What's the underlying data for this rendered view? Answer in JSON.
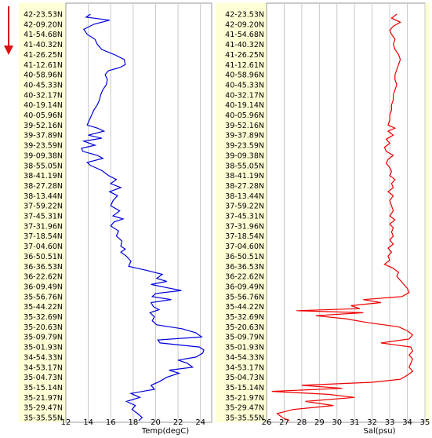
{
  "chart_data": [
    {
      "type": "line",
      "xlabel": "Temp(degC)",
      "xlim": [
        12,
        25
      ],
      "xticks": [
        12,
        14,
        16,
        18,
        20,
        22,
        24
      ],
      "ylabels": [
        "42-23.53N",
        "42-09.20N",
        "41-54.68N",
        "41-40.32N",
        "41-26.25N",
        "41-12.61N",
        "40-58.96N",
        "40-45.33N",
        "40-32.17N",
        "40-19.14N",
        "40-05.96N",
        "39-52.16N",
        "39-37.89N",
        "39-23.59N",
        "39-09.38N",
        "38-55.05N",
        "38-41.19N",
        "38-27.28N",
        "38-13.44N",
        "37-59.22N",
        "37-45.31N",
        "37-31.96N",
        "37-18.54N",
        "37-04.60N",
        "36-50.51N",
        "36-36.53N",
        "36-22.62N",
        "36-09.49N",
        "35-56.76N",
        "35-44.22N",
        "35-32.69N",
        "35-20.63N",
        "35-09.79N",
        "35-01.93N",
        "34-54.33N",
        "34-53.17N",
        "35-04.73N",
        "35-15.14N",
        "35-21.97N",
        "35-29.47N",
        "35-35.55N"
      ],
      "color": "#0000dd",
      "series": [
        {
          "y": 0.0,
          "x": 14.2
        },
        {
          "y": 0.3,
          "x": 13.8
        },
        {
          "y": 0.6,
          "x": 15.9
        },
        {
          "y": 1.0,
          "x": 14.5
        },
        {
          "y": 1.5,
          "x": 13.6
        },
        {
          "y": 2.0,
          "x": 13.9
        },
        {
          "y": 2.5,
          "x": 14.6
        },
        {
          "y": 3.0,
          "x": 14.8
        },
        {
          "y": 3.5,
          "x": 15.2
        },
        {
          "y": 4.0,
          "x": 16.3
        },
        {
          "y": 4.5,
          "x": 17.2
        },
        {
          "y": 5.0,
          "x": 17.3
        },
        {
          "y": 5.3,
          "x": 16.8
        },
        {
          "y": 5.6,
          "x": 15.8
        },
        {
          "y": 6.0,
          "x": 15.5
        },
        {
          "y": 6.5,
          "x": 15.7
        },
        {
          "y": 7.0,
          "x": 15.6
        },
        {
          "y": 7.5,
          "x": 15.3
        },
        {
          "y": 8.0,
          "x": 15.1
        },
        {
          "y": 8.5,
          "x": 15.0
        },
        {
          "y": 9.0,
          "x": 14.8
        },
        {
          "y": 9.5,
          "x": 14.5
        },
        {
          "y": 10.0,
          "x": 14.3
        },
        {
          "y": 10.5,
          "x": 14.1
        },
        {
          "y": 11.0,
          "x": 13.9
        },
        {
          "y": 11.3,
          "x": 14.8
        },
        {
          "y": 11.6,
          "x": 15.4
        },
        {
          "y": 12.0,
          "x": 14.0
        },
        {
          "y": 12.3,
          "x": 15.2
        },
        {
          "y": 12.6,
          "x": 13.6
        },
        {
          "y": 13.0,
          "x": 14.6
        },
        {
          "y": 13.3,
          "x": 13.4
        },
        {
          "y": 13.6,
          "x": 13.5
        },
        {
          "y": 14.0,
          "x": 14.8
        },
        {
          "y": 14.3,
          "x": 15.3
        },
        {
          "y": 14.7,
          "x": 13.9
        },
        {
          "y": 15.0,
          "x": 14.2
        },
        {
          "y": 15.5,
          "x": 15.2
        },
        {
          "y": 16.0,
          "x": 15.8
        },
        {
          "y": 16.4,
          "x": 16.5
        },
        {
          "y": 16.8,
          "x": 16.0
        },
        {
          "y": 17.2,
          "x": 16.9
        },
        {
          "y": 17.6,
          "x": 15.9
        },
        {
          "y": 18.0,
          "x": 16.6
        },
        {
          "y": 18.5,
          "x": 16.2
        },
        {
          "y": 19.0,
          "x": 16.0
        },
        {
          "y": 19.5,
          "x": 16.8
        },
        {
          "y": 20.0,
          "x": 16.2
        },
        {
          "y": 20.3,
          "x": 17.1
        },
        {
          "y": 20.6,
          "x": 16.3
        },
        {
          "y": 21.0,
          "x": 16.0
        },
        {
          "y": 21.5,
          "x": 16.7
        },
        {
          "y": 22.0,
          "x": 16.5
        },
        {
          "y": 22.5,
          "x": 17.0
        },
        {
          "y": 23.0,
          "x": 16.9
        },
        {
          "y": 23.3,
          "x": 17.3
        },
        {
          "y": 23.6,
          "x": 16.9
        },
        {
          "y": 24.0,
          "x": 17.4
        },
        {
          "y": 24.5,
          "x": 17.8
        },
        {
          "y": 25.0,
          "x": 17.6
        },
        {
          "y": 25.4,
          "x": 19.2
        },
        {
          "y": 25.8,
          "x": 20.6
        },
        {
          "y": 26.2,
          "x": 20.1
        },
        {
          "y": 26.5,
          "x": 21.0
        },
        {
          "y": 26.8,
          "x": 19.6
        },
        {
          "y": 27.1,
          "x": 20.9
        },
        {
          "y": 27.4,
          "x": 22.3
        },
        {
          "y": 27.7,
          "x": 20.0
        },
        {
          "y": 28.0,
          "x": 19.7
        },
        {
          "y": 28.3,
          "x": 21.4
        },
        {
          "y": 28.6,
          "x": 19.6
        },
        {
          "y": 29.0,
          "x": 19.8
        },
        {
          "y": 29.3,
          "x": 20.3
        },
        {
          "y": 29.6,
          "x": 19.5
        },
        {
          "y": 30.0,
          "x": 19.9
        },
        {
          "y": 30.4,
          "x": 19.7
        },
        {
          "y": 30.8,
          "x": 20.1
        },
        {
          "y": 31.2,
          "x": 22.4
        },
        {
          "y": 31.6,
          "x": 23.6
        },
        {
          "y": 32.0,
          "x": 24.1
        },
        {
          "y": 32.3,
          "x": 20.2
        },
        {
          "y": 32.6,
          "x": 20.4
        },
        {
          "y": 33.0,
          "x": 23.9
        },
        {
          "y": 33.3,
          "x": 24.3
        },
        {
          "y": 33.6,
          "x": 24.2
        },
        {
          "y": 34.0,
          "x": 23.6
        },
        {
          "y": 34.3,
          "x": 22.0
        },
        {
          "y": 34.6,
          "x": 22.8
        },
        {
          "y": 35.0,
          "x": 23.3
        },
        {
          "y": 35.3,
          "x": 21.2
        },
        {
          "y": 35.6,
          "x": 22.1
        },
        {
          "y": 36.0,
          "x": 21.0
        },
        {
          "y": 36.4,
          "x": 20.4
        },
        {
          "y": 36.8,
          "x": 19.6
        },
        {
          "y": 37.2,
          "x": 19.9
        },
        {
          "y": 37.6,
          "x": 17.8
        },
        {
          "y": 38.0,
          "x": 18.6
        },
        {
          "y": 38.4,
          "x": 17.4
        },
        {
          "y": 38.8,
          "x": 18.2
        },
        {
          "y": 39.2,
          "x": 17.9
        },
        {
          "y": 39.6,
          "x": 18.4
        },
        {
          "y": 40.0,
          "x": 18.8
        },
        {
          "y": 40.3,
          "x": 18.5
        }
      ]
    },
    {
      "type": "line",
      "xlabel": "Sal(psu)",
      "xlim": [
        26,
        35
      ],
      "xticks": [
        26,
        27,
        28,
        29,
        30,
        31,
        32,
        33,
        34,
        35
      ],
      "ylabels": [
        "42-23.53N",
        "42-09.20N",
        "41-54.68N",
        "41-40.32N",
        "41-26.25N",
        "41-12.61N",
        "40-58.96N",
        "40-45.33N",
        "40-32.17N",
        "40-19.14N",
        "40-05.96N",
        "39-52.16N",
        "39-37.89N",
        "39-23.59N",
        "39-09.38N",
        "38-55.05N",
        "38-41.19N",
        "38-27.28N",
        "38-13.44N",
        "37-59.22N",
        "37-45.31N",
        "37-31.96N",
        "37-18.54N",
        "37-04.60N",
        "36-50.51N",
        "36-36.53N",
        "36-22.62N",
        "36-09.49N",
        "35-56.76N",
        "35-44.22N",
        "35-32.69N",
        "35-20.63N",
        "35-09.79N",
        "35-01.93N",
        "34-54.33N",
        "34-53.17N",
        "35-04.73N",
        "35-15.14N",
        "35-21.97N",
        "35-29.47N",
        "35-35.55N"
      ],
      "color": "#ee0000",
      "series": [
        {
          "y": 0.0,
          "x": 33.4
        },
        {
          "y": 0.4,
          "x": 33.1
        },
        {
          "y": 0.8,
          "x": 33.6
        },
        {
          "y": 1.2,
          "x": 33.2
        },
        {
          "y": 1.6,
          "x": 33.0
        },
        {
          "y": 2.0,
          "x": 33.1
        },
        {
          "y": 2.5,
          "x": 33.3
        },
        {
          "y": 3.0,
          "x": 33.2
        },
        {
          "y": 3.5,
          "x": 33.3
        },
        {
          "y": 4.0,
          "x": 33.5
        },
        {
          "y": 4.5,
          "x": 33.6
        },
        {
          "y": 5.0,
          "x": 33.5
        },
        {
          "y": 5.5,
          "x": 33.4
        },
        {
          "y": 6.0,
          "x": 33.3
        },
        {
          "y": 6.5,
          "x": 33.3
        },
        {
          "y": 7.0,
          "x": 33.4
        },
        {
          "y": 7.5,
          "x": 33.3
        },
        {
          "y": 8.0,
          "x": 33.2
        },
        {
          "y": 8.5,
          "x": 33.2
        },
        {
          "y": 9.0,
          "x": 33.1
        },
        {
          "y": 9.5,
          "x": 33.1
        },
        {
          "y": 10.0,
          "x": 33.0
        },
        {
          "y": 10.5,
          "x": 33.0
        },
        {
          "y": 11.0,
          "x": 32.9
        },
        {
          "y": 11.3,
          "x": 33.3
        },
        {
          "y": 11.6,
          "x": 32.9
        },
        {
          "y": 12.0,
          "x": 33.2
        },
        {
          "y": 12.4,
          "x": 32.8
        },
        {
          "y": 12.8,
          "x": 33.0
        },
        {
          "y": 13.2,
          "x": 32.7
        },
        {
          "y": 13.6,
          "x": 32.8
        },
        {
          "y": 14.0,
          "x": 33.2
        },
        {
          "y": 14.4,
          "x": 32.9
        },
        {
          "y": 14.8,
          "x": 32.8
        },
        {
          "y": 15.2,
          "x": 33.0
        },
        {
          "y": 15.6,
          "x": 33.1
        },
        {
          "y": 16.0,
          "x": 33.0
        },
        {
          "y": 16.4,
          "x": 33.3
        },
        {
          "y": 16.8,
          "x": 33.1
        },
        {
          "y": 17.2,
          "x": 33.2
        },
        {
          "y": 17.6,
          "x": 32.9
        },
        {
          "y": 18.0,
          "x": 33.2
        },
        {
          "y": 18.5,
          "x": 33.0
        },
        {
          "y": 19.0,
          "x": 33.1
        },
        {
          "y": 19.5,
          "x": 33.2
        },
        {
          "y": 20.0,
          "x": 33.0
        },
        {
          "y": 20.4,
          "x": 33.3
        },
        {
          "y": 20.8,
          "x": 33.0
        },
        {
          "y": 21.2,
          "x": 33.2
        },
        {
          "y": 21.6,
          "x": 33.1
        },
        {
          "y": 22.0,
          "x": 33.2
        },
        {
          "y": 22.4,
          "x": 33.0
        },
        {
          "y": 22.8,
          "x": 33.2
        },
        {
          "y": 23.2,
          "x": 32.9
        },
        {
          "y": 23.6,
          "x": 33.1
        },
        {
          "y": 24.0,
          "x": 32.9
        },
        {
          "y": 24.4,
          "x": 33.0
        },
        {
          "y": 24.8,
          "x": 32.7
        },
        {
          "y": 25.2,
          "x": 33.2
        },
        {
          "y": 25.6,
          "x": 33.5
        },
        {
          "y": 26.0,
          "x": 33.4
        },
        {
          "y": 26.4,
          "x": 33.6
        },
        {
          "y": 26.8,
          "x": 33.8
        },
        {
          "y": 27.2,
          "x": 34.0
        },
        {
          "y": 27.6,
          "x": 34.1
        },
        {
          "y": 28.0,
          "x": 33.7
        },
        {
          "y": 28.3,
          "x": 31.5
        },
        {
          "y": 28.6,
          "x": 32.5
        },
        {
          "y": 28.9,
          "x": 30.8
        },
        {
          "y": 29.2,
          "x": 31.3
        },
        {
          "y": 29.4,
          "x": 27.7
        },
        {
          "y": 29.6,
          "x": 31.5
        },
        {
          "y": 29.9,
          "x": 28.8
        },
        {
          "y": 30.2,
          "x": 30.5
        },
        {
          "y": 30.6,
          "x": 31.8
        },
        {
          "y": 31.0,
          "x": 33.5
        },
        {
          "y": 31.4,
          "x": 34.0
        },
        {
          "y": 31.8,
          "x": 34.3
        },
        {
          "y": 32.2,
          "x": 34.1
        },
        {
          "y": 32.6,
          "x": 32.5
        },
        {
          "y": 33.0,
          "x": 34.2
        },
        {
          "y": 33.4,
          "x": 34.3
        },
        {
          "y": 33.8,
          "x": 34.1
        },
        {
          "y": 34.2,
          "x": 34.3
        },
        {
          "y": 34.6,
          "x": 34.2
        },
        {
          "y": 35.0,
          "x": 34.1
        },
        {
          "y": 35.4,
          "x": 34.3
        },
        {
          "y": 35.8,
          "x": 34.0
        },
        {
          "y": 36.2,
          "x": 33.6
        },
        {
          "y": 36.5,
          "x": 32.0
        },
        {
          "y": 36.8,
          "x": 28.0
        },
        {
          "y": 37.1,
          "x": 30.3
        },
        {
          "y": 37.4,
          "x": 26.3
        },
        {
          "y": 37.7,
          "x": 29.5
        },
        {
          "y": 38.0,
          "x": 31.0
        },
        {
          "y": 38.4,
          "x": 28.2
        },
        {
          "y": 38.8,
          "x": 29.8
        },
        {
          "y": 39.2,
          "x": 27.5
        },
        {
          "y": 39.6,
          "x": 26.6
        },
        {
          "y": 40.0,
          "x": 26.9
        },
        {
          "y": 40.3,
          "x": 27.3
        }
      ]
    }
  ]
}
